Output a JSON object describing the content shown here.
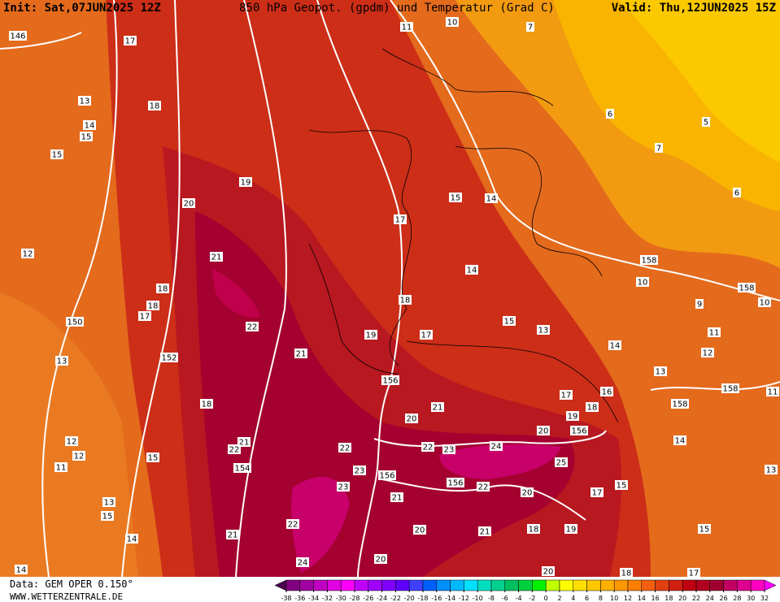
{
  "header": {
    "init": "Init: Sat,07JUN2025 12Z",
    "title": "850 hPa Geopot. (gpdm) und Temperatur (Grad C)",
    "valid": "Valid: Thu,12JUN2025 15Z"
  },
  "footer": {
    "data": "Data: GEM OPER 0.150°",
    "site": "WWW.WETTERZENTRALE.DE"
  },
  "contour_labels": [
    146,
    17,
    13,
    14,
    15,
    15,
    18,
    19,
    20,
    21,
    12,
    18,
    18,
    17,
    150,
    22,
    152,
    13,
    21,
    18,
    21,
    22,
    12,
    12,
    11,
    15,
    154,
    13,
    15,
    14,
    21,
    22,
    14,
    24,
    11,
    10,
    7,
    6,
    5,
    7,
    6,
    15,
    14,
    17,
    14,
    158,
    10,
    158,
    9,
    10,
    15,
    13,
    11,
    19,
    17,
    18,
    14,
    12,
    156,
    13,
    158,
    17,
    16,
    18,
    21,
    20,
    19,
    20,
    156,
    158,
    11,
    22,
    22,
    23,
    24,
    23,
    156,
    25,
    23,
    156,
    22,
    21,
    20,
    17,
    15,
    14,
    13,
    20,
    21,
    18,
    19,
    15,
    20,
    20,
    17,
    18
  ],
  "legend": {
    "ticks": [
      -38,
      -36,
      -34,
      -32,
      -30,
      -28,
      -26,
      -24,
      -22,
      -20,
      -18,
      -16,
      -14,
      -12,
      -10,
      -8,
      -6,
      -4,
      -2,
      0,
      2,
      4,
      6,
      8,
      10,
      12,
      14,
      16,
      18,
      20,
      22,
      24,
      26,
      28,
      30,
      32
    ],
    "colors": [
      "#4b0050",
      "#800080",
      "#a000a0",
      "#c000c0",
      "#e000e0",
      "#ff00ff",
      "#c000ff",
      "#a000ff",
      "#8000ff",
      "#6000ff",
      "#4040ff",
      "#0060ff",
      "#0090ff",
      "#00b8ff",
      "#00e0ff",
      "#00e0c0",
      "#00d090",
      "#00c060",
      "#00d040",
      "#00f000",
      "#c0ff00",
      "#ffff00",
      "#ffe000",
      "#ffc800",
      "#ffb000",
      "#ff9800",
      "#ff8000",
      "#f06010",
      "#e04010",
      "#d02010",
      "#c00010",
      "#b00020",
      "#a00030",
      "#c00060",
      "#e00090",
      "#ff00c0",
      "#ff00ff"
    ]
  }
}
